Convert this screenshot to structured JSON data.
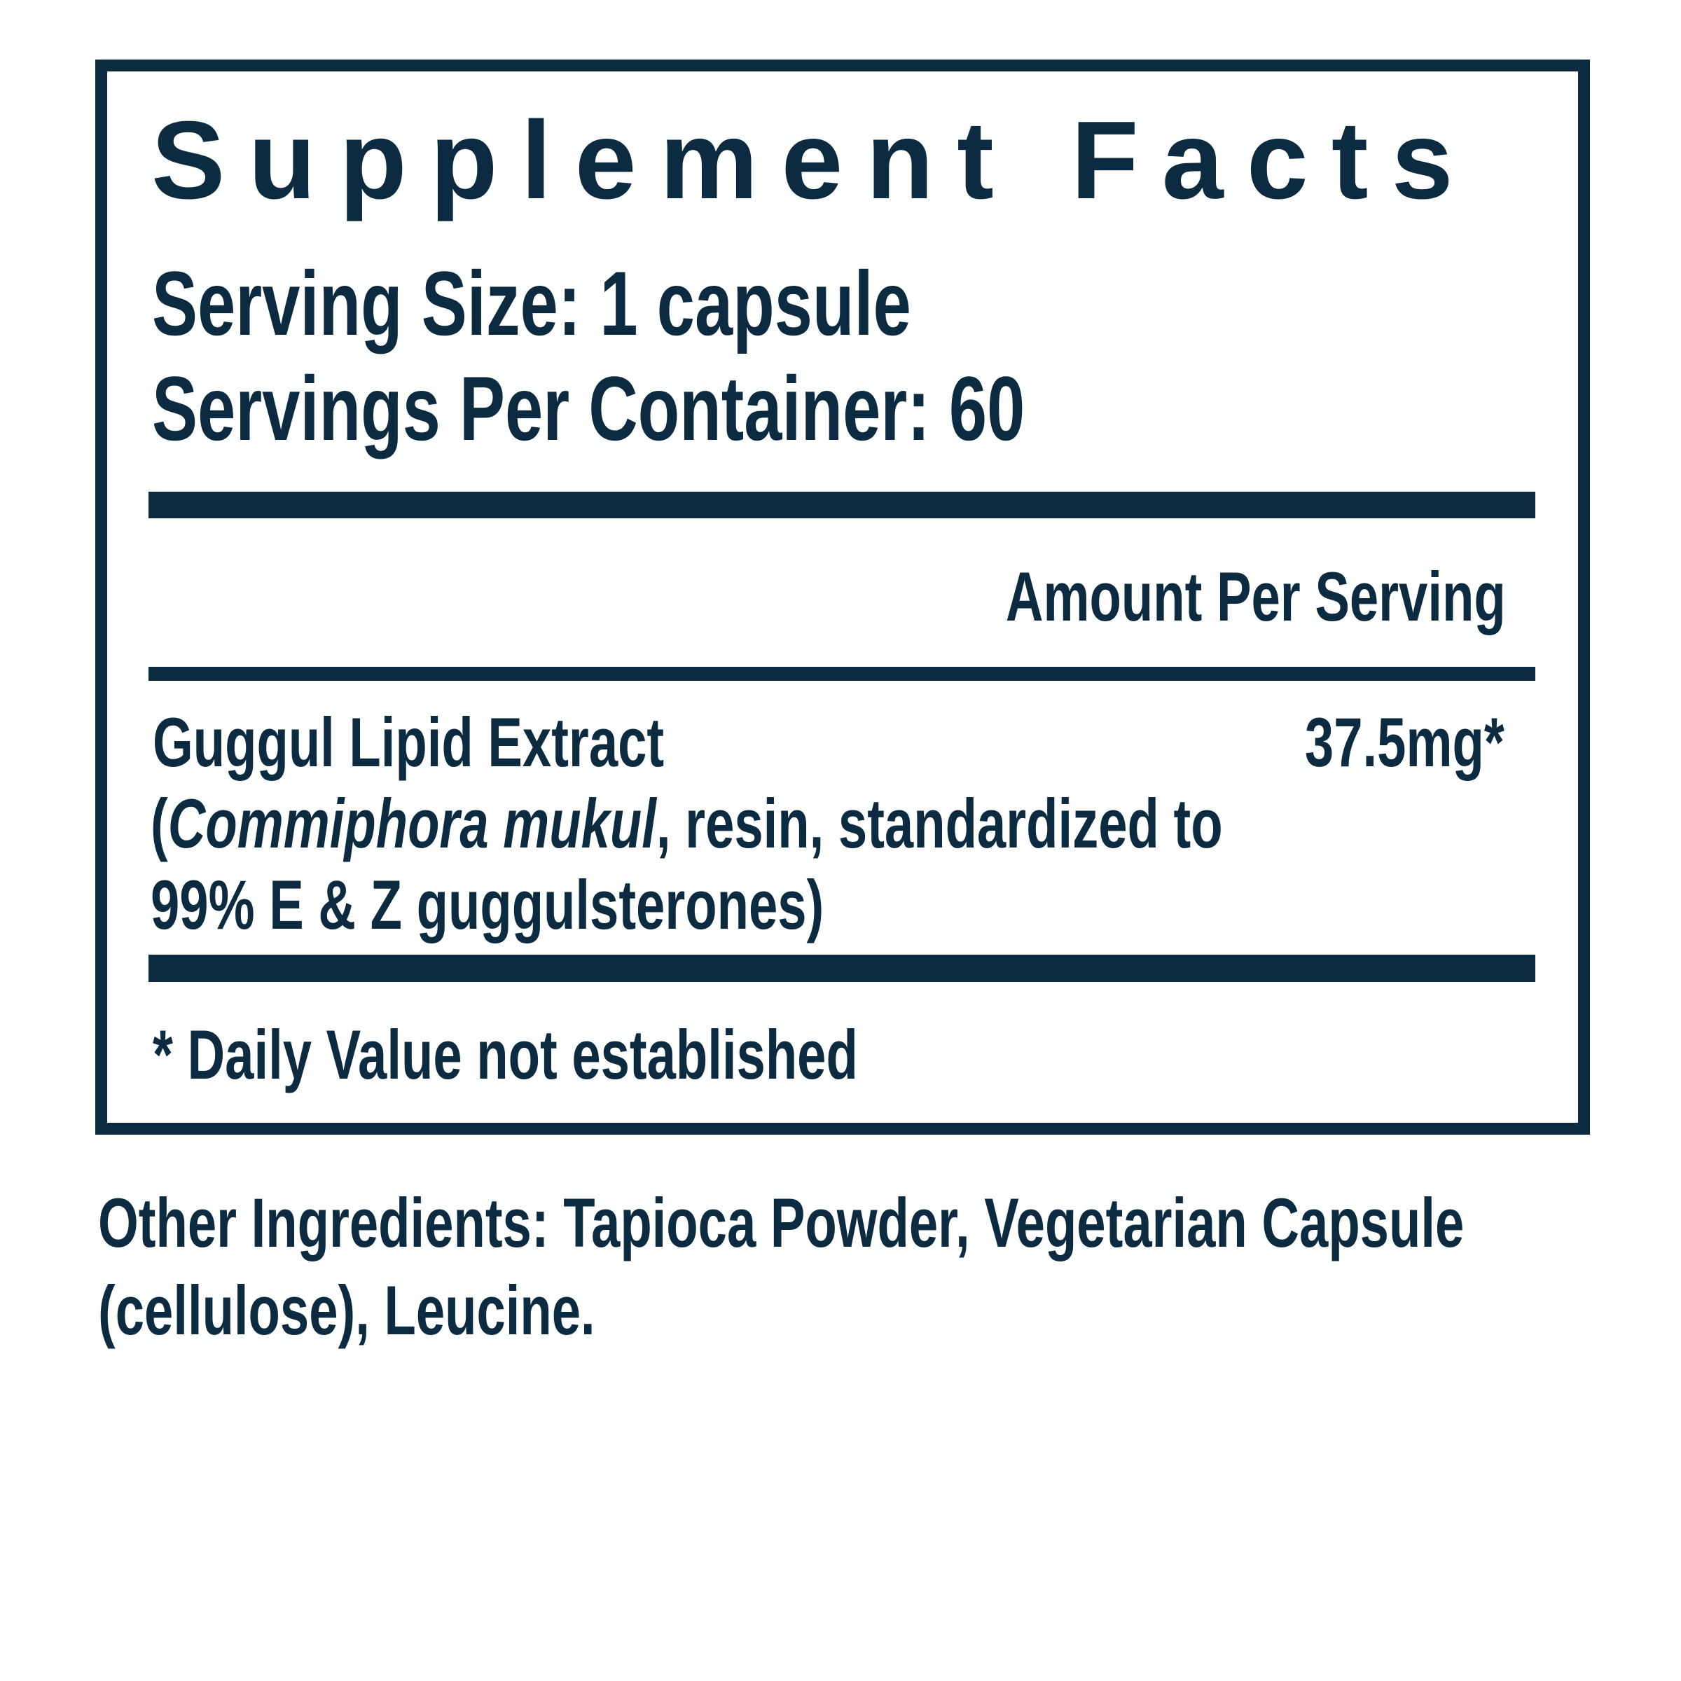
{
  "colors": {
    "navy": "#0c2b40",
    "background": "#ffffff"
  },
  "panel": {
    "title": "Supplement Facts",
    "serving_size": "Serving Size: 1 capsule",
    "servings_per_container": "Servings Per Container: 60",
    "amount_per_serving_header": "Amount Per Serving",
    "ingredient": {
      "name": "Guggul Lipid Extract",
      "amount": "37.5mg*",
      "description_prefix": "(",
      "description_latin": "Commiphora mukul",
      "description_rest": ", resin, standardized to",
      "description_line2": "99% E & Z guggulsterones)"
    },
    "footnote": "* Daily Value not established"
  },
  "other_ingredients": {
    "line1": "Other Ingredients: Tapioca Powder, Vegetarian Capsule",
    "line2": "(cellulose), Leucine."
  }
}
